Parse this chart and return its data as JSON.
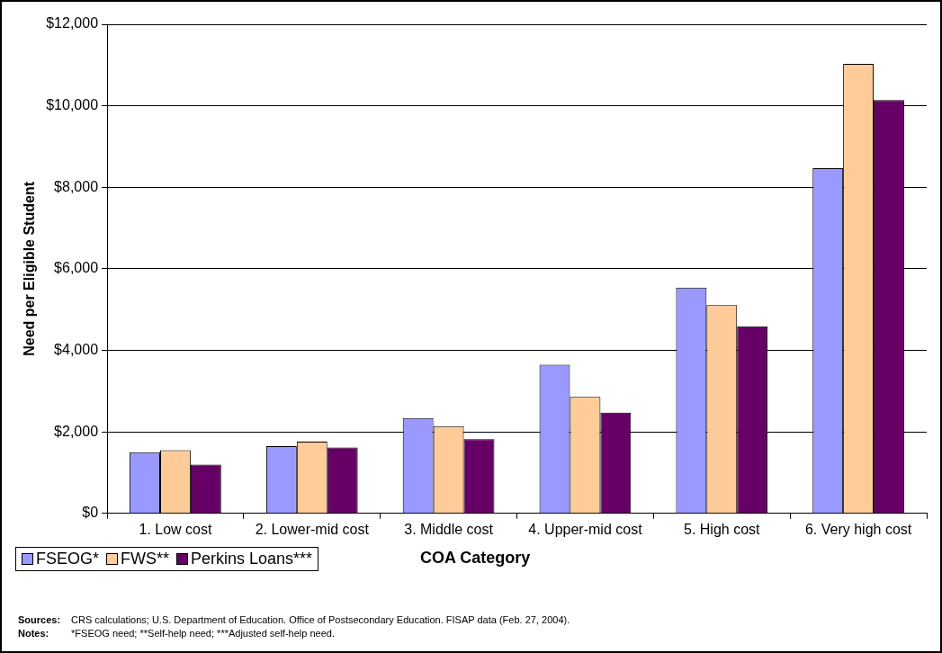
{
  "chart_data": {
    "type": "bar",
    "xlabel": "COA Category",
    "ylabel": "Need per Eligible Student",
    "categories": [
      "1. Low cost",
      "2. Lower-mid cost",
      "3. Middle cost",
      "4. Upper-mid cost",
      "5. High cost",
      "6. Very high cost"
    ],
    "series": [
      {
        "name": "FSEOG*",
        "color": "#9999ff",
        "values": [
          1500,
          1650,
          2340,
          3650,
          5540,
          8470
        ]
      },
      {
        "name": "FWS**",
        "color": "#ffcc99",
        "values": [
          1550,
          1760,
          2140,
          2860,
          5110,
          11030
        ]
      },
      {
        "name": "Perkins Loans***",
        "color": "#660066",
        "values": [
          1200,
          1620,
          1820,
          2470,
          4590,
          10140
        ]
      }
    ],
    "ylim": [
      0,
      12000
    ],
    "yticks": [
      {
        "value": 0,
        "label": "$0"
      },
      {
        "value": 2000,
        "label": "$2,000"
      },
      {
        "value": 4000,
        "label": "$4,000"
      },
      {
        "value": 6000,
        "label": "$6,000"
      },
      {
        "value": 8000,
        "label": "$8,000"
      },
      {
        "value": 10000,
        "label": "$10,000"
      },
      {
        "value": 12000,
        "label": "$12,000"
      }
    ],
    "grid": "y",
    "legend": "bottom left",
    "annotations": [
      "Sources: CRS calculations; U.S. Department of Education.  Office of Postsecondary Education.  FISAP data (Feb. 27, 2004).",
      "Notes:\t*FSEOG need; **Self-help need; ***Adjusted self-help need."
    ]
  }
}
